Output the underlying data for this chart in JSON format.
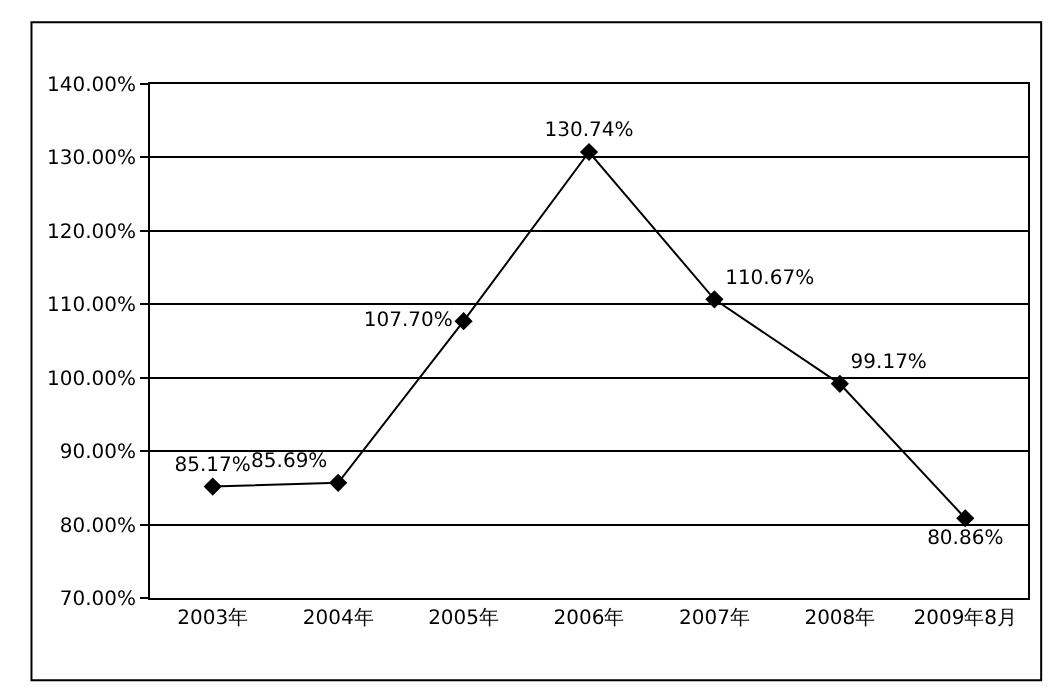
{
  "chart_data": {
    "type": "line",
    "categories": [
      "2003年",
      "2004年",
      "2005年",
      "2006年",
      "2007年",
      "2008年",
      "2009年8月"
    ],
    "series": [
      {
        "color": "#000000",
        "values": [
          85.17,
          85.69,
          107.7,
          130.74,
          110.67,
          99.17,
          80.86
        ],
        "value_labels": [
          "85.17%",
          "85.69%",
          "107.70%",
          "130.74%",
          "110.67%",
          "99.17%",
          "80.86%"
        ]
      }
    ],
    "ylim": [
      70,
      140
    ],
    "yticks": [
      {
        "value": 70,
        "label": "70.00%"
      },
      {
        "value": 80,
        "label": "80.00%"
      },
      {
        "value": 90,
        "label": "90.00%"
      },
      {
        "value": 100,
        "label": "100.00%"
      },
      {
        "value": 110,
        "label": "110.00%"
      },
      {
        "value": 120,
        "label": "120.00%"
      },
      {
        "value": 130,
        "label": "130.00%"
      },
      {
        "value": 140,
        "label": "140.00%"
      }
    ],
    "grid": "y",
    "marker": "diamond",
    "line_style": "solid",
    "legend": false
  }
}
